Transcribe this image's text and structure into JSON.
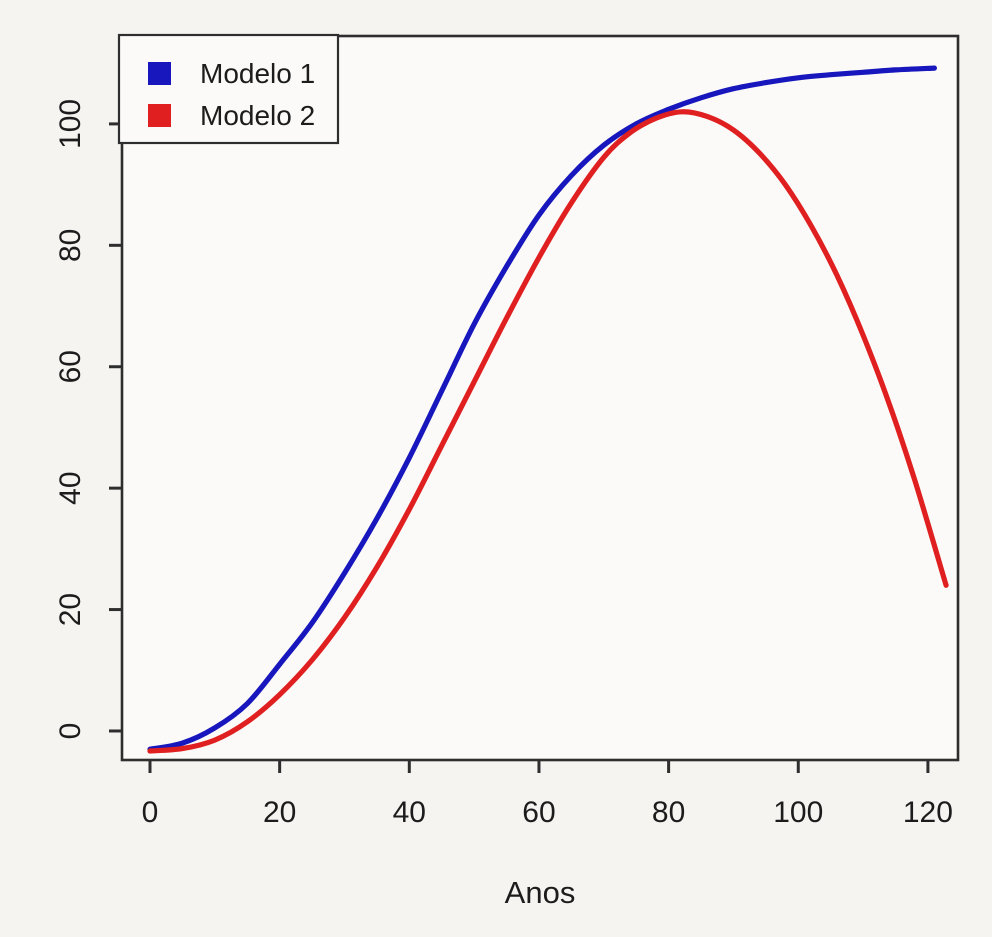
{
  "figure": {
    "background": "#f5f4f1",
    "plot_background": "#fbfaf8",
    "axis_color": "#2e2e2e",
    "tick_label_color": "#1c1c1c"
  },
  "chart_data": {
    "type": "line",
    "title": "",
    "xlabel": "Anos",
    "ylabel": "",
    "xlim": [
      -4,
      125
    ],
    "ylim": [
      -5,
      114
    ],
    "x_ticks": [
      0,
      20,
      40,
      60,
      80,
      100,
      120
    ],
    "y_ticks": [
      0,
      20,
      40,
      60,
      80,
      100
    ],
    "grid": false,
    "legend_position": "top-left",
    "legend": [
      {
        "label": "Modelo 1",
        "color": "#1717bd"
      },
      {
        "label": "Modelo 2",
        "color": "#e02020"
      }
    ],
    "series": [
      {
        "name": "Modelo 1",
        "color": "#1717bd",
        "points": [
          [
            0,
            -3
          ],
          [
            5,
            -2
          ],
          [
            10,
            0.5
          ],
          [
            15,
            4.5
          ],
          [
            20,
            11
          ],
          [
            25,
            17.8
          ],
          [
            30,
            26
          ],
          [
            35,
            35
          ],
          [
            40,
            45
          ],
          [
            45,
            56
          ],
          [
            50,
            67
          ],
          [
            55,
            76.5
          ],
          [
            60,
            85
          ],
          [
            65,
            91.5
          ],
          [
            70,
            96.5
          ],
          [
            75,
            100
          ],
          [
            80,
            102.4
          ],
          [
            85,
            104.3
          ],
          [
            90,
            105.8
          ],
          [
            95,
            106.8
          ],
          [
            100,
            107.6
          ],
          [
            105,
            108.1
          ],
          [
            110,
            108.5
          ],
          [
            115,
            108.9
          ],
          [
            121,
            109.2
          ]
        ]
      },
      {
        "name": "Modelo 2",
        "color": "#e02020",
        "points": [
          [
            0,
            -3.3
          ],
          [
            5,
            -2.9
          ],
          [
            10,
            -1.5
          ],
          [
            15,
            1.5
          ],
          [
            20,
            6
          ],
          [
            25,
            11.7
          ],
          [
            30,
            18.7
          ],
          [
            35,
            27
          ],
          [
            40,
            36.5
          ],
          [
            45,
            47
          ],
          [
            50,
            57.5
          ],
          [
            55,
            68
          ],
          [
            60,
            78
          ],
          [
            65,
            87
          ],
          [
            70,
            94.5
          ],
          [
            74,
            98.5
          ],
          [
            78,
            100.9
          ],
          [
            82,
            102
          ],
          [
            86,
            101.2
          ],
          [
            90,
            99.0
          ],
          [
            94,
            95.2
          ],
          [
            98,
            90.0
          ],
          [
            102,
            83.2
          ],
          [
            106,
            75.0
          ],
          [
            110,
            65.2
          ],
          [
            114,
            54.0
          ],
          [
            118,
            41.2
          ],
          [
            122.8,
            24
          ]
        ]
      }
    ]
  }
}
